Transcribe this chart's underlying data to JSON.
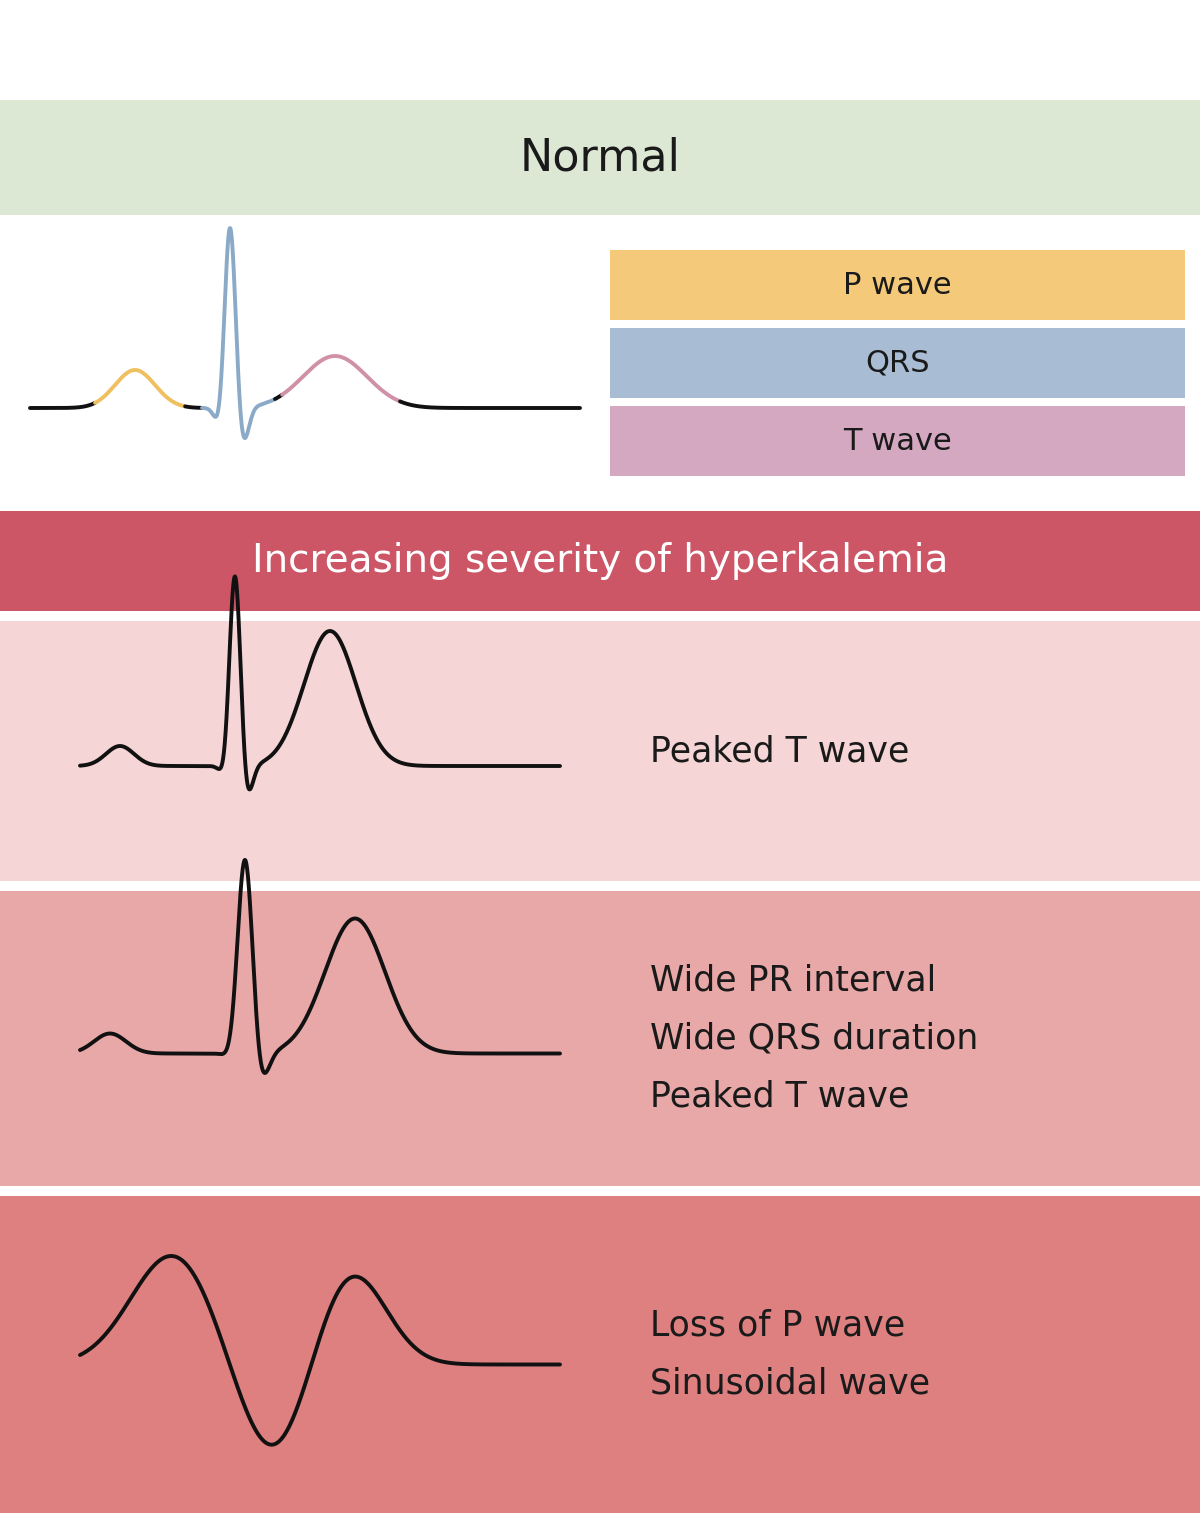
{
  "bg_color": "#ffffff",
  "normal_header_color": "#dce8d4",
  "normal_header_text": "Normal",
  "normal_header_text_color": "#1a1a1a",
  "ecg_legend_colors": [
    "#f5c97a",
    "#a8bcd4",
    "#d4a8c0"
  ],
  "ecg_legend_labels": [
    "P wave",
    "QRS",
    "T wave"
  ],
  "severity_header_color": "#cc5566",
  "severity_header_text": "Increasing severity of hyperkalemia",
  "severity_header_text_color": "#ffffff",
  "row1_color": "#f5d5d5",
  "row1_label": "Peaked T wave",
  "row2_color": "#e8a8a8",
  "row2_label": "Wide PR interval\nWide QRS duration\nPeaked T wave",
  "row3_color": "#de8080",
  "row3_label": "Loss of P wave\nSinusoidal wave",
  "label_text_color": "#1a1a1a",
  "ecg_line_color": "#111111",
  "normal_ecg_p_color": "#f0c060",
  "normal_ecg_qrs_color": "#8aaac8",
  "normal_ecg_t_color": "#d090a8"
}
